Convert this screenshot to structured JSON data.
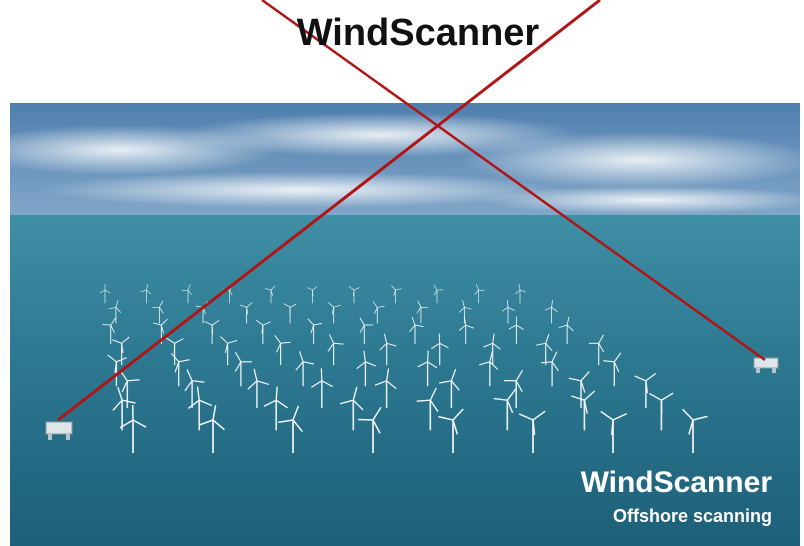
{
  "header": {
    "title": "WindScanner"
  },
  "overlay": {
    "title": "WindScanner",
    "subtitle": "Offshore scanning"
  }
}
